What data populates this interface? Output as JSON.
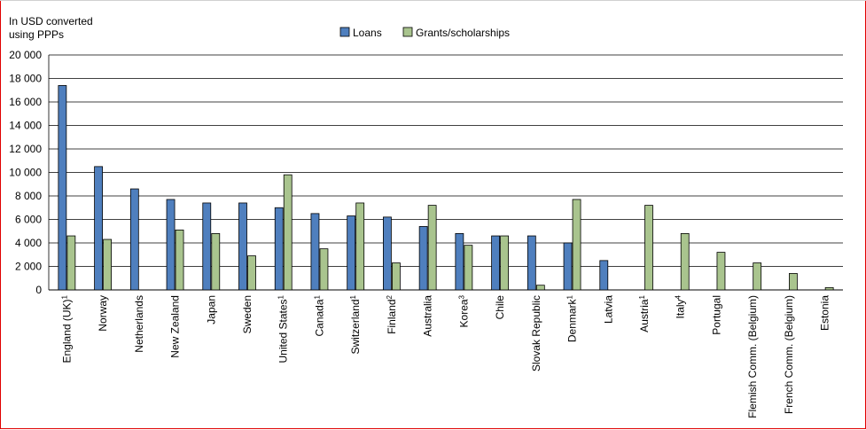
{
  "chart_data": {
    "type": "bar",
    "ylabel": "In USD converted using PPPs",
    "ylabel_lines": [
      "In USD converted",
      "using PPPs"
    ],
    "ylim": [
      0,
      20000
    ],
    "yticks": [
      0,
      2000,
      4000,
      6000,
      8000,
      10000,
      12000,
      14000,
      16000,
      18000,
      20000
    ],
    "ytick_labels": [
      "0",
      "2 000",
      "4 000",
      "6 000",
      "8 000",
      "10 000",
      "12 000",
      "14 000",
      "16 000",
      "18 000",
      "20 000"
    ],
    "grid": true,
    "legend_position": "top-center",
    "categories": [
      {
        "name": "England (UK)",
        "sup": "1"
      },
      {
        "name": "Norway",
        "sup": ""
      },
      {
        "name": "Netherlands",
        "sup": ""
      },
      {
        "name": "New Zealand",
        "sup": ""
      },
      {
        "name": "Japan",
        "sup": ""
      },
      {
        "name": "Sweden",
        "sup": ""
      },
      {
        "name": "United States",
        "sup": "1"
      },
      {
        "name": "Canada",
        "sup": "1"
      },
      {
        "name": "Switzerland",
        "sup": "1"
      },
      {
        "name": "Finland",
        "sup": "2"
      },
      {
        "name": "Australia",
        "sup": ""
      },
      {
        "name": "Korea",
        "sup": "3"
      },
      {
        "name": "Chile",
        "sup": ""
      },
      {
        "name": "Slovak Republic",
        "sup": ""
      },
      {
        "name": "Denmark",
        "sup": "1"
      },
      {
        "name": "Latvia",
        "sup": ""
      },
      {
        "name": "Austria",
        "sup": "1"
      },
      {
        "name": "Italy",
        "sup": "4"
      },
      {
        "name": "Portugal",
        "sup": ""
      },
      {
        "name": "Flemish Comm. (Belgium)",
        "sup": ""
      },
      {
        "name": "French Comm. (Belgium)",
        "sup": ""
      },
      {
        "name": "Estonia",
        "sup": ""
      }
    ],
    "series": [
      {
        "name": "Loans",
        "color": "#4f7fbe",
        "values": [
          17400,
          10500,
          8600,
          7700,
          7400,
          7400,
          7000,
          6500,
          6300,
          6200,
          5400,
          4800,
          4600,
          4600,
          4000,
          2500,
          0,
          0,
          0,
          0,
          0,
          0
        ]
      },
      {
        "name": "Grants/scholarships",
        "color": "#a9c48e",
        "values": [
          4600,
          4300,
          0,
          5100,
          4800,
          2900,
          9800,
          3500,
          7400,
          2300,
          7200,
          3800,
          4600,
          400,
          7700,
          0,
          7200,
          4800,
          3200,
          2300,
          1400,
          200
        ]
      }
    ]
  }
}
